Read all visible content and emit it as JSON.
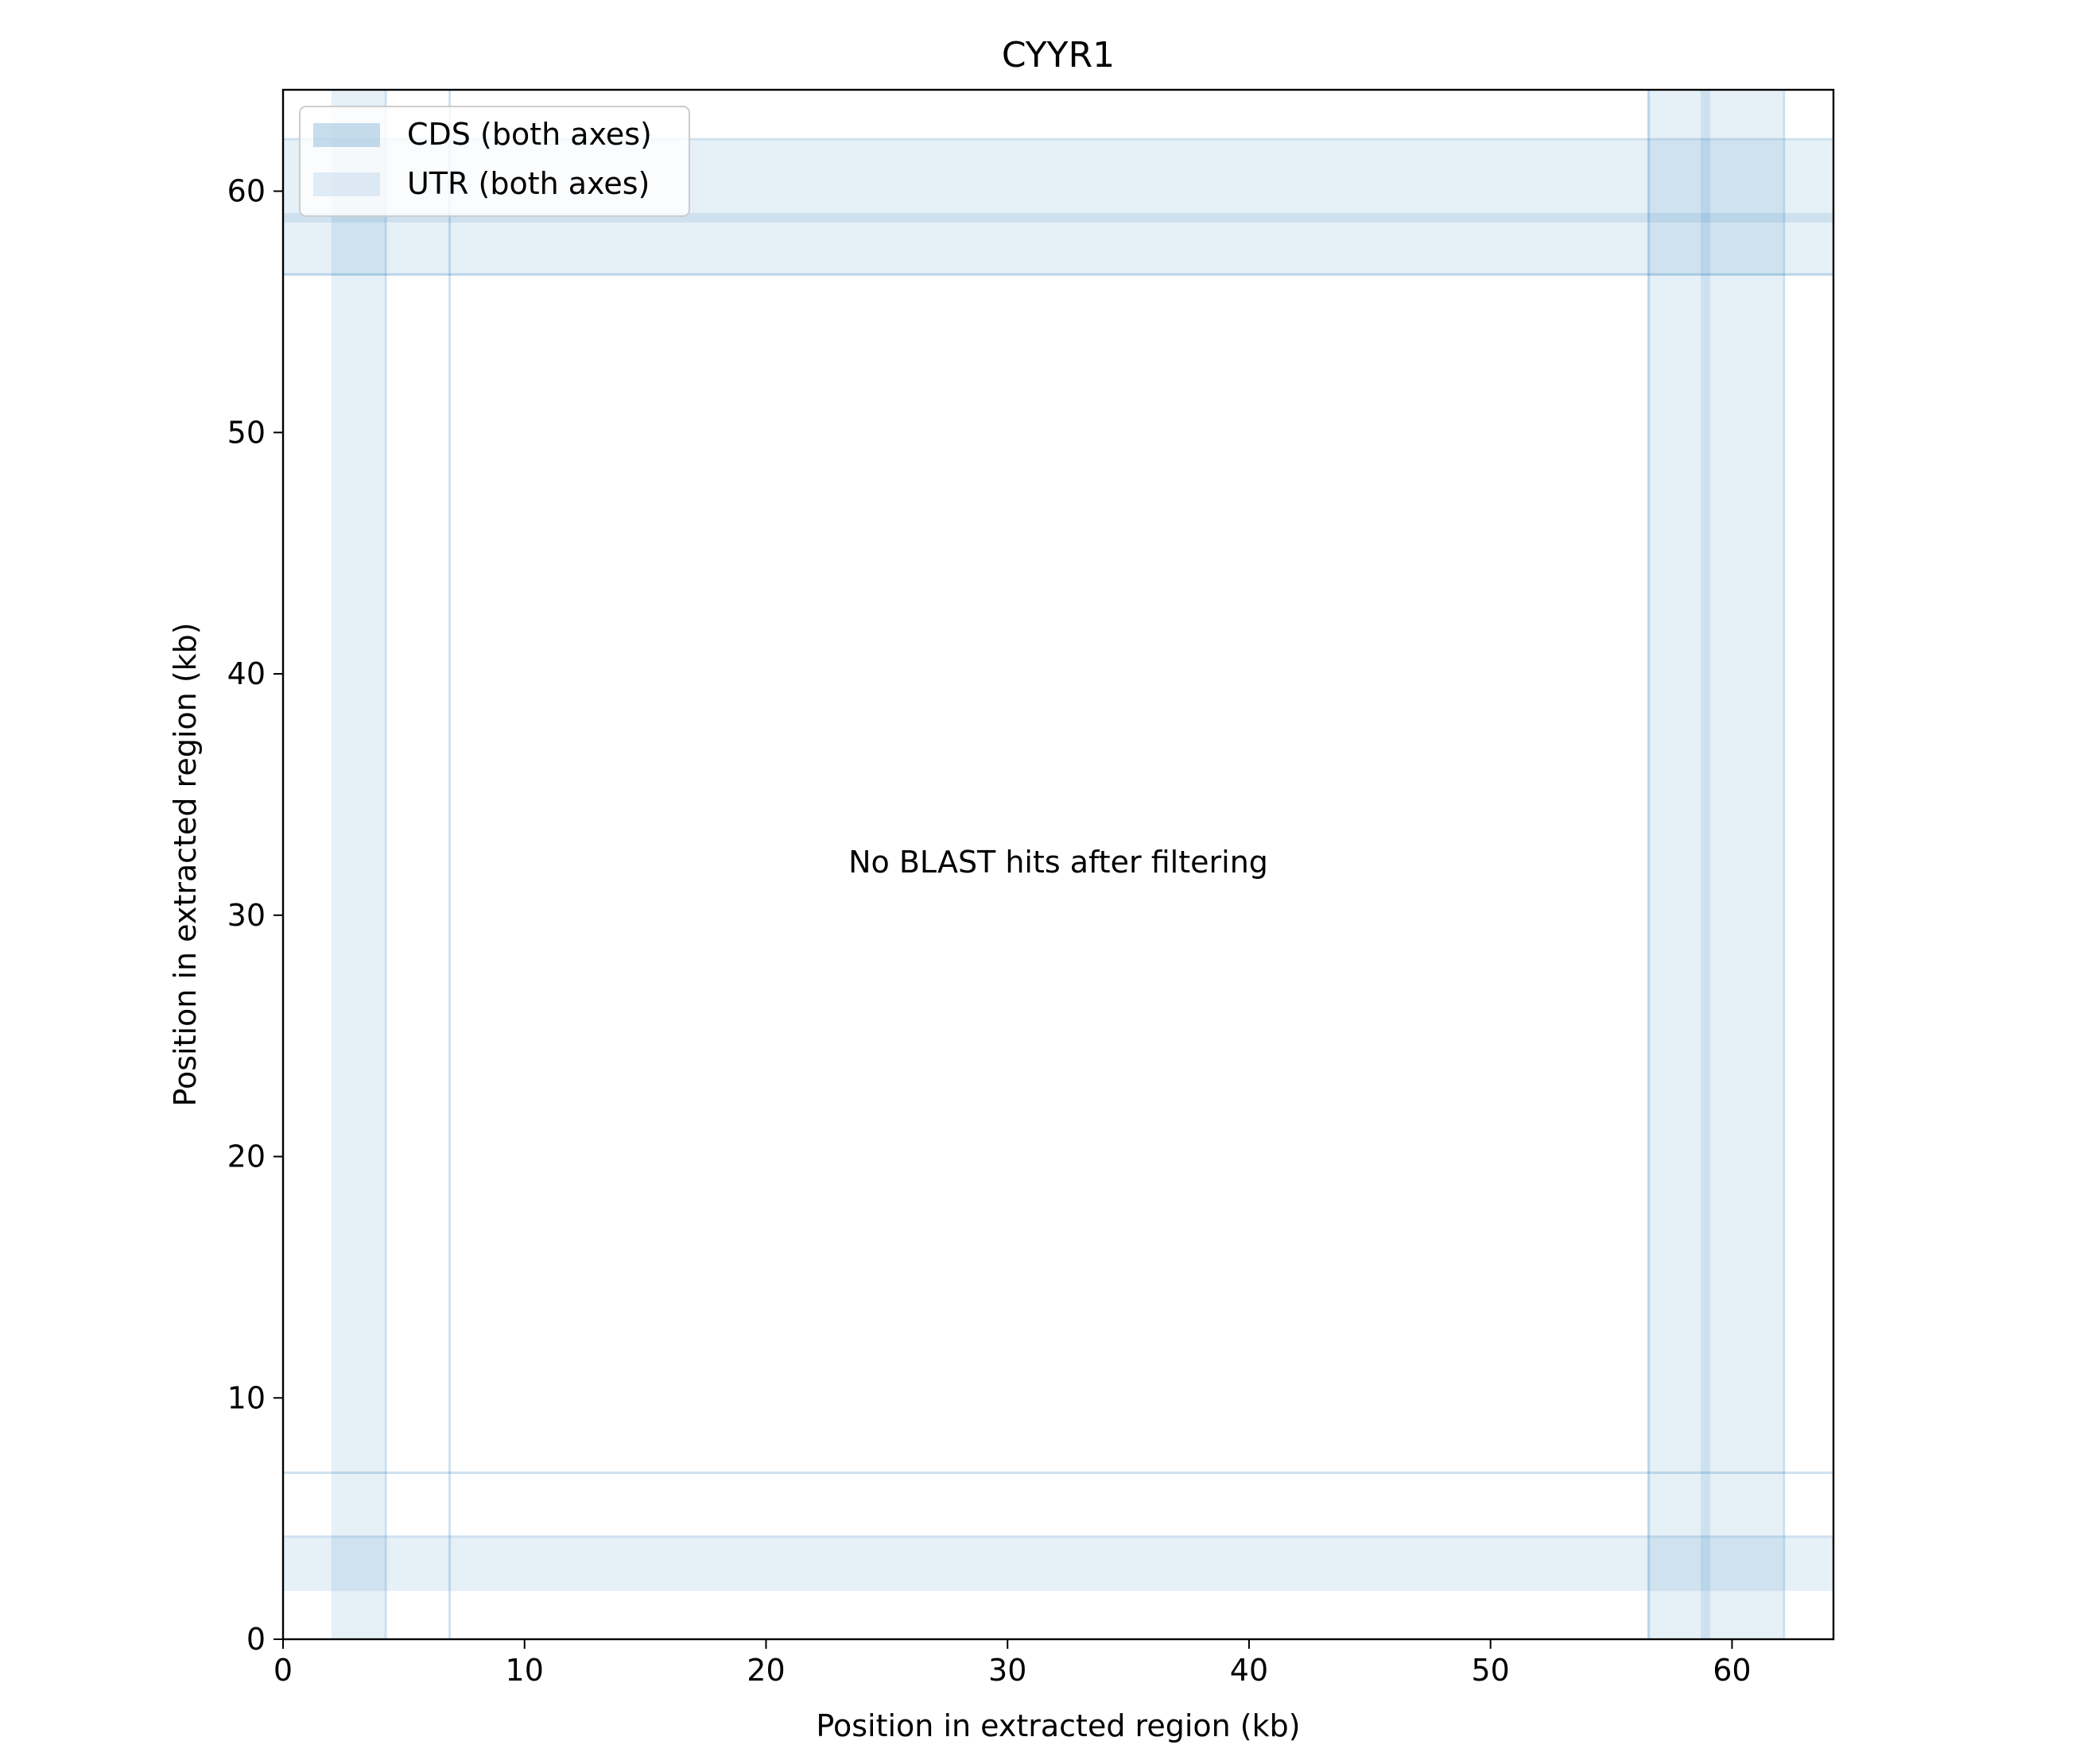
{
  "chart_data": {
    "type": "dotplot",
    "title": "CYYR1",
    "xlabel": "Position in extracted region (kb)",
    "ylabel": "Position in extracted region (kb)",
    "xlim": [
      0,
      64.2
    ],
    "ylim": [
      0,
      64.2
    ],
    "xticks": [
      "0",
      "10",
      "20",
      "30",
      "40",
      "50",
      "60"
    ],
    "yticks": [
      "0",
      "10",
      "20",
      "30",
      "40",
      "50",
      "60"
    ],
    "tick_values": [
      0,
      10,
      20,
      30,
      40,
      50,
      60
    ],
    "annotation": "No BLAST hits after filtering",
    "legend": {
      "placement": "top-left",
      "entries": [
        {
          "label": "CDS (both axes)",
          "color": "#1f77b4",
          "alpha": 0.25
        },
        {
          "label": "UTR (both axes)",
          "color": "#1f77b4",
          "alpha": 0.12
        }
      ]
    },
    "utr_regions": [
      [
        2.0,
        4.2
      ],
      [
        56.5,
        58.7
      ],
      [
        59.1,
        62.1
      ]
    ],
    "cds_regions": [
      [
        4.2,
        4.3
      ],
      [
        6.85,
        6.95
      ],
      [
        56.5,
        56.6
      ],
      [
        58.7,
        59.1
      ],
      [
        62.1,
        62.2
      ]
    ],
    "colors": {
      "cds": "#1f77b4",
      "utr": "#1f77b4"
    }
  }
}
